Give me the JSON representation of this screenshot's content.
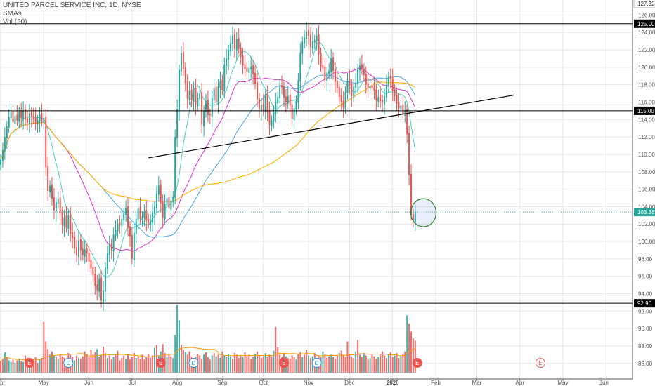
{
  "legend": {
    "symbol_line": "UNITED PARCEL SERVICE INC, 1D, NYSE",
    "sma_label": "SMAs",
    "vol_label": "Vol (20)"
  },
  "colors": {
    "up": "#26a69a",
    "down": "#ef5350",
    "sma_fast": "#5fd0c0",
    "sma_mid": "#e040d0",
    "sma_slow": "#ffb000",
    "sma_blue": "#5aa8e8",
    "grid": "#e6e6e6",
    "axis_text": "#555555",
    "level_line": "#000000",
    "price_line": "#26a69a"
  },
  "chart_data": {
    "type": "candlestick",
    "title": "UNITED PARCEL SERVICE INC, 1D, NYSE",
    "ylim": [
      85.5,
      127.4
    ],
    "grid": true,
    "y_ticks": [
      "86.00",
      "88.00",
      "90.00",
      "92.00",
      "94.00",
      "96.00",
      "98.00",
      "100.00",
      "102.00",
      "104.00",
      "106.00",
      "108.00",
      "110.00",
      "112.00",
      "114.00",
      "116.00",
      "118.00",
      "120.00",
      "122.00",
      "124.00",
      "126.00"
    ],
    "x_ticks": [
      "Apr",
      "May",
      "Jun",
      "Jul",
      "Aug",
      "Sep",
      "Oct",
      "Nov",
      "Dec",
      "2020",
      "Feb",
      "Mar",
      "Apr",
      "May",
      "Jun"
    ],
    "tick_day_index": [
      0,
      21,
      43,
      64,
      86,
      108,
      128,
      150,
      170,
      191,
      212,
      232,
      253,
      274,
      294
    ],
    "horizontal_levels": [
      {
        "label": "127.32",
        "value": 127.32,
        "style": "top"
      },
      {
        "label": "125.00",
        "value": 125.0,
        "style": "black"
      },
      {
        "label": "115.00",
        "value": 115.0,
        "style": "black"
      },
      {
        "label": "92.90",
        "value": 92.9,
        "style": "black"
      }
    ],
    "last_price": {
      "label": "103.38",
      "value": 103.38
    },
    "trendline": {
      "from": {
        "day": 72,
        "price": 109.6
      },
      "to": {
        "day": 250,
        "price": 116.8
      }
    },
    "highlight_circle": {
      "day": 206,
      "price": 103.3
    },
    "event_markers": [
      {
        "label": "E",
        "day": 14,
        "kind": "past"
      },
      {
        "label": "D",
        "day": 33,
        "kind": "past"
      },
      {
        "label": "E",
        "day": 78,
        "kind": "past"
      },
      {
        "label": "D",
        "day": 94,
        "kind": "past"
      },
      {
        "label": "E",
        "day": 138,
        "kind": "past"
      },
      {
        "label": "D",
        "day": 154,
        "kind": "past"
      },
      {
        "label": "E",
        "day": 203,
        "kind": "past"
      },
      {
        "label": "E",
        "day": 263,
        "kind": "future"
      }
    ],
    "closes": [
      109.4,
      110.5,
      112.0,
      113.2,
      114.3,
      114.8,
      113.7,
      114.4,
      113.9,
      114.9,
      114.2,
      115.0,
      114.0,
      113.6,
      114.7,
      114.3,
      114.1,
      113.6,
      113.9,
      114.6,
      113.8,
      114.2,
      108.5,
      105.8,
      106.4,
      104.9,
      103.6,
      104.5,
      104.9,
      103.2,
      101.9,
      102.8,
      101.6,
      103.0,
      100.9,
      100.4,
      99.2,
      98.4,
      100.1,
      99.0,
      98.4,
      99.1,
      98.6,
      97.7,
      96.9,
      96.1,
      94.9,
      94.4,
      95.7,
      93.2,
      94.4,
      97.0,
      98.6,
      99.6,
      99.0,
      100.8,
      101.3,
      102.0,
      101.9,
      102.6,
      103.2,
      103.9,
      101.6,
      100.6,
      98.0,
      101.0,
      102.6,
      103.8,
      102.6,
      102.9,
      103.4,
      102.4,
      102.1,
      102.3,
      103.3,
      104.0,
      105.5,
      106.4,
      104.4,
      102.7,
      104.3,
      105.0,
      103.8,
      104.7,
      105.2,
      112.0,
      115.2,
      119.7,
      121.6,
      119.8,
      118.2,
      116.4,
      117.3,
      116.2,
      117.5,
      115.7,
      116.5,
      117.0,
      113.4,
      115.0,
      116.1,
      114.5,
      114.5,
      116.4,
      117.6,
      115.9,
      117.8,
      118.4,
      117.4,
      120.3,
      121.0,
      122.0,
      122.8,
      123.6,
      122.1,
      123.2,
      122.1,
      121.2,
      120.2,
      119.8,
      119.5,
      119.9,
      120.1,
      119.2,
      118.1,
      116.3,
      115.2,
      115.7,
      115.0,
      116.9,
      114.8,
      113.4,
      113.9,
      114.8,
      116.0,
      116.6,
      117.8,
      117.7,
      116.5,
      116.0,
      116.7,
      115.6,
      114.1,
      115.3,
      116.1,
      118.5,
      121.7,
      122.9,
      123.4,
      124.1,
      123.6,
      122.3,
      123.0,
      123.1,
      123.6,
      121.5,
      120.1,
      119.9,
      118.6,
      119.4,
      119.6,
      121.0,
      119.6,
      118.3,
      117.6,
      116.6,
      116.0,
      115.4,
      117.2,
      118.5,
      117.9,
      116.7,
      117.8,
      118.2,
      119.8,
      120.2,
      119.7,
      119.1,
      118.0,
      117.7,
      117.8,
      117.6,
      117.3,
      116.2,
      116.6,
      116.1,
      115.9,
      116.7,
      118.0,
      118.9,
      118.6,
      117.3,
      116.7,
      115.8,
      115.3,
      115.6,
      114.6,
      115.0,
      112.3,
      107.6,
      103.0,
      102.4,
      103.38
    ],
    "volume_ylim": [
      0,
      12
    ],
    "volume": [
      1.4,
      1.7,
      2.5,
      1.9,
      1.5,
      1.3,
      1.6,
      1.2,
      1.5,
      1.7,
      1.4,
      1.3,
      2.1,
      1.8,
      1.6,
      1.4,
      1.5,
      1.9,
      1.2,
      1.6,
      1.8,
      6.2,
      3.8,
      2.9,
      2.2,
      2.6,
      2.1,
      1.9,
      1.7,
      2.3,
      2.0,
      1.8,
      1.6,
      2.4,
      2.2,
      1.9,
      1.5,
      2.1,
      1.8,
      1.7,
      2.0,
      2.6,
      2.3,
      1.9,
      2.8,
      2.2,
      2.5,
      2.9,
      1.9,
      2.2,
      3.2,
      2.4,
      1.8,
      2.1,
      1.6,
      1.9,
      2.2,
      2.7,
      1.5,
      1.8,
      2.1,
      1.7,
      2.3,
      1.6,
      1.9,
      2.4,
      1.8,
      2.0,
      1.7,
      2.2,
      1.6,
      1.9,
      2.3,
      1.8,
      2.1,
      3.0,
      3.4,
      2.1,
      2.6,
      3.5,
      2.4,
      1.9,
      2.2,
      2.0,
      1.8,
      4.6,
      8.3,
      6.4,
      3.4,
      2.8,
      2.5,
      2.2,
      2.6,
      2.0,
      1.8,
      1.9,
      2.3,
      2.1,
      1.7,
      2.2,
      2.5,
      1.9,
      1.6,
      2.1,
      2.4,
      2.0,
      2.2,
      1.8,
      2.6,
      2.1,
      1.9,
      2.3,
      2.0,
      1.7,
      2.4,
      2.2,
      1.8,
      2.1,
      1.9,
      2.5,
      2.0,
      2.2,
      1.7,
      1.9,
      2.3,
      2.6,
      2.1,
      1.8,
      2.0,
      2.4,
      1.9,
      2.2,
      2.0,
      2.7,
      5.6,
      3.1,
      2.2,
      1.9,
      2.4,
      2.0,
      1.8,
      1.7,
      2.1,
      1.9,
      1.6,
      2.3,
      2.5,
      1.9,
      2.2,
      2.8,
      2.1,
      1.8,
      2.0,
      2.4,
      1.7,
      2.1,
      1.9,
      2.6,
      2.3,
      1.8,
      2.0,
      2.2,
      1.9,
      1.7,
      2.1,
      2.4,
      2.7,
      2.1,
      1.9,
      3.8,
      2.3,
      2.0,
      1.8,
      2.6,
      4.0,
      2.2,
      1.9,
      2.4,
      2.1,
      1.6,
      1.8,
      2.2,
      2.0,
      1.7,
      1.9,
      2.3,
      2.6,
      2.1,
      1.8,
      2.2,
      2.5,
      1.9,
      2.1,
      2.4,
      1.8,
      2.0,
      2.3,
      2.6,
      7.0,
      6.0,
      5.0,
      4.2,
      3.9
    ],
    "volume_up_indices": [
      2,
      4,
      5,
      7,
      9,
      11,
      14,
      19,
      24,
      26,
      28,
      36,
      38,
      47,
      52,
      55,
      61,
      66,
      75,
      77,
      78,
      81,
      84,
      85,
      86,
      87,
      90,
      95,
      99,
      103,
      105,
      107,
      109,
      111,
      112,
      118,
      124,
      129,
      133,
      139,
      144,
      147,
      150,
      152,
      154,
      157,
      161,
      165,
      173,
      177,
      180,
      184,
      189,
      192,
      195,
      198,
      203,
      206,
      210
    ]
  }
}
